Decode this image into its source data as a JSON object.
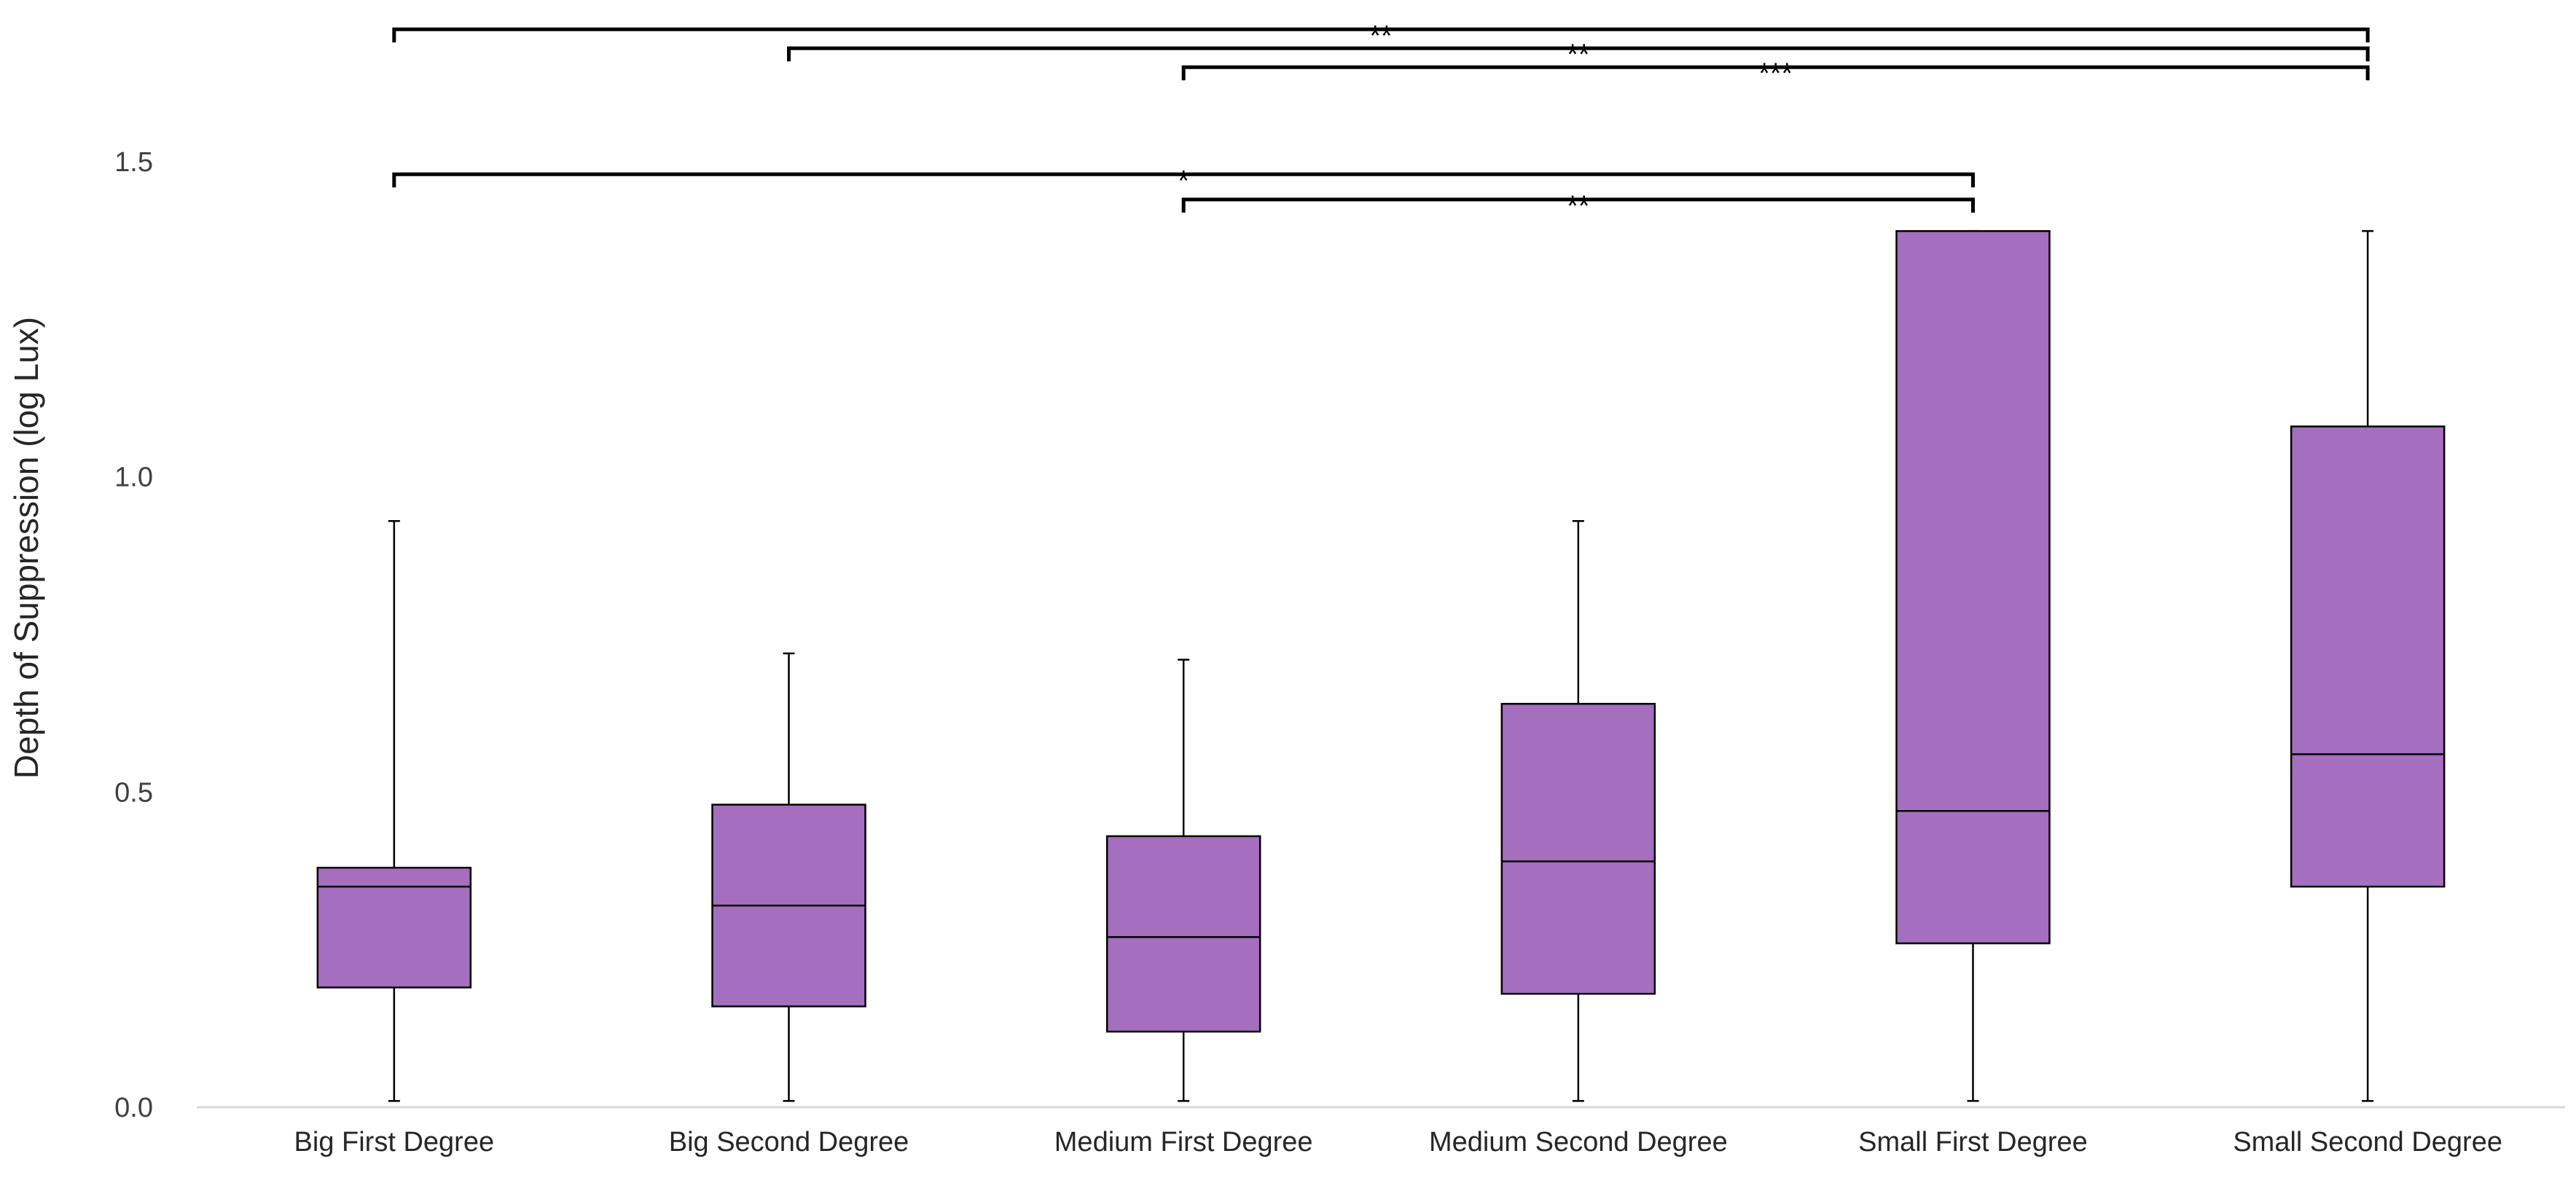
{
  "chart_data": {
    "type": "boxplot",
    "title": "",
    "xlabel": "",
    "ylabel": "Depth of Suppression (log Lux)",
    "ylim": [
      0,
      1.5
    ],
    "yticks": [
      {
        "value": 0.0,
        "label": "0.0"
      },
      {
        "value": 0.5,
        "label": "0.5"
      },
      {
        "value": 1.0,
        "label": "1.0"
      },
      {
        "value": 1.5,
        "label": "1.5"
      }
    ],
    "grid": false,
    "colors": {
      "box_fill": "#a56ebe",
      "line": "#000000",
      "baseline": "#d9d9d9"
    },
    "groups": [
      {
        "name": "Big First Degree",
        "min": 0.01,
        "q1": 0.19,
        "median": 0.35,
        "q3": 0.38,
        "max": 0.93
      },
      {
        "name": "Big Second Degree",
        "min": 0.01,
        "q1": 0.16,
        "median": 0.32,
        "q3": 0.48,
        "max": 0.72
      },
      {
        "name": "Medium First Degree",
        "min": 0.01,
        "q1": 0.12,
        "median": 0.27,
        "q3": 0.43,
        "max": 0.71
      },
      {
        "name": "Medium Second Degree",
        "min": 0.01,
        "q1": 0.18,
        "median": 0.39,
        "q3": 0.64,
        "max": 0.93
      },
      {
        "name": "Small First Degree",
        "min": 0.01,
        "q1": 0.26,
        "median": 0.47,
        "q3": 1.39,
        "max": 1.39
      },
      {
        "name": "Small Second Degree",
        "min": 0.01,
        "q1": 0.35,
        "median": 0.56,
        "q3": 1.08,
        "max": 1.39
      }
    ],
    "significance": [
      {
        "from": 0,
        "to": 5,
        "label": "**",
        "level": 1.71
      },
      {
        "from": 1,
        "to": 5,
        "label": "**",
        "level": 1.68
      },
      {
        "from": 2,
        "to": 5,
        "label": "***",
        "level": 1.65
      },
      {
        "from": 0,
        "to": 4,
        "label": "*",
        "level": 1.48
      },
      {
        "from": 2,
        "to": 4,
        "label": "**",
        "level": 1.44
      }
    ]
  }
}
